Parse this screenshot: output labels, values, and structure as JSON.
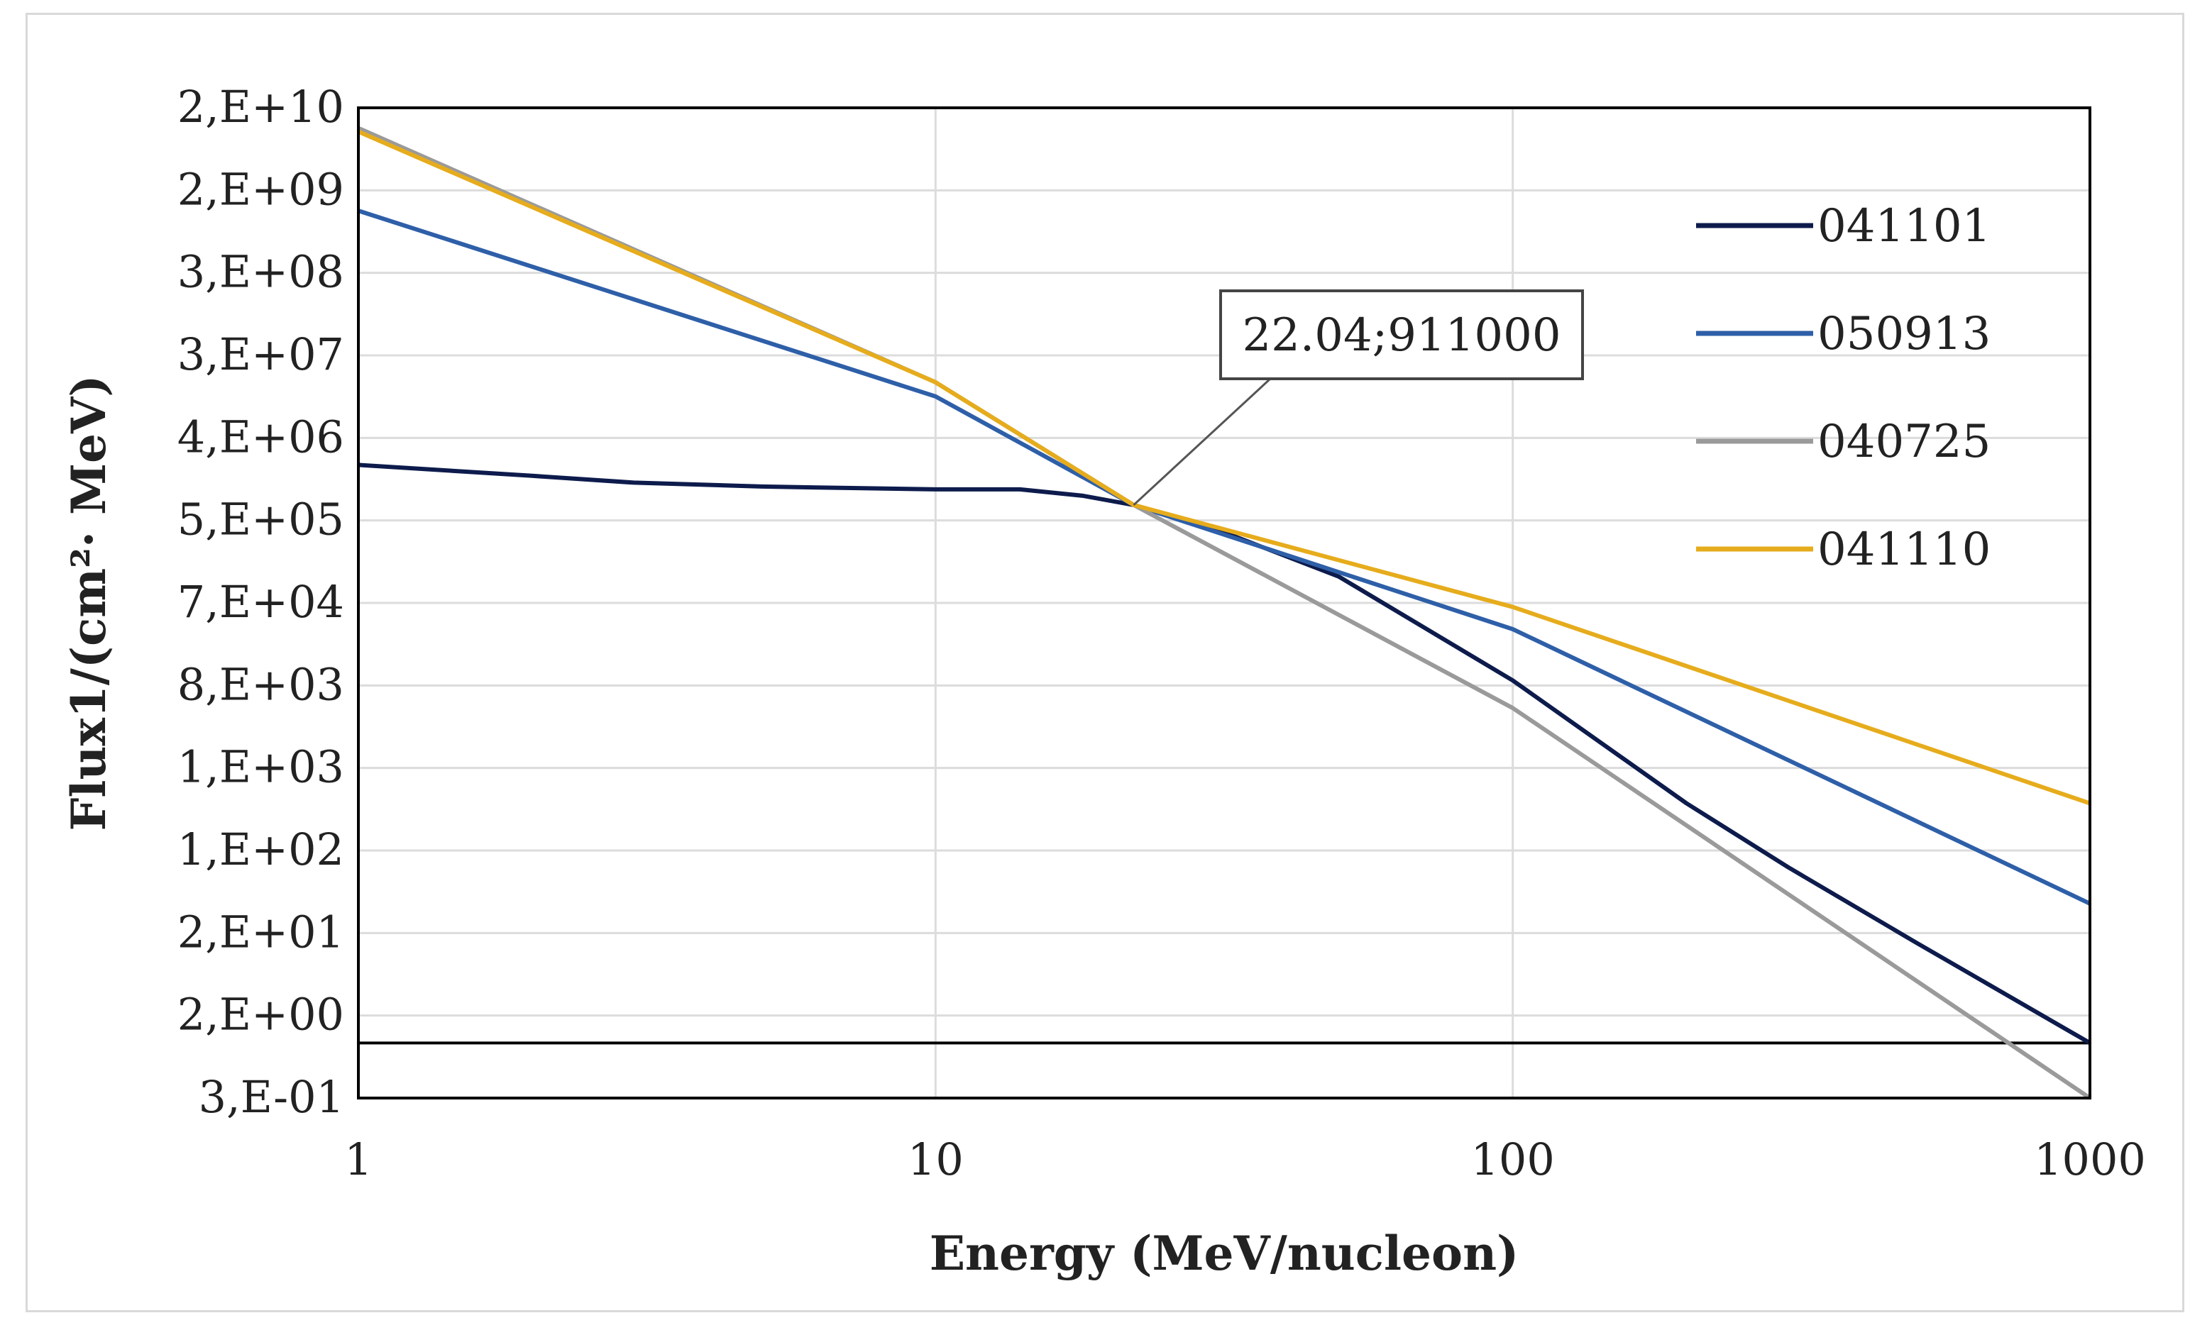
{
  "chart_data": {
    "type": "line",
    "title": "",
    "xlabel": "Energy (MeV/nucleon)",
    "ylabel": "Flux1/(cm²· MeV)",
    "xscale": "log",
    "yscale": "log",
    "xlim": [
      1,
      1000
    ],
    "ylim": [
      0.3,
      20000000000
    ],
    "grid": true,
    "legend_position": "right",
    "x_ticks": [
      "1",
      "10",
      "100",
      "1000"
    ],
    "y_ticks": [
      "2,E+10",
      "2,E+09",
      "3,E+08",
      "3,E+07",
      "4,E+06",
      "5,E+05",
      "7,E+04",
      "8,E+03",
      "1,E+03",
      "1,E+02",
      "2,E+01",
      "2,E+00",
      "3,E-01"
    ],
    "reference_line": {
      "y": 1.2
    },
    "annotation": {
      "text": "22.04;911000",
      "x": 22.04,
      "y": 911000
    },
    "series": [
      {
        "name": "041101",
        "color": "#0d1b4c",
        "x": [
          1,
          2,
          3,
          5,
          7,
          10,
          14,
          18,
          22.04,
          30,
          50,
          100,
          200,
          300,
          500,
          1000
        ],
        "y": [
          2500000,
          1900000,
          1600000,
          1450000,
          1400000,
          1350000,
          1350000,
          1150000,
          911000,
          520000,
          150000,
          11000,
          500,
          100,
          15,
          1.2
        ]
      },
      {
        "name": "050913",
        "color": "#2e5fa8",
        "x": [
          1,
          10,
          22.04,
          100,
          1000
        ],
        "y": [
          1500000000,
          14000000,
          911000,
          40000,
          40
        ]
      },
      {
        "name": "040725",
        "color": "#9a9a9a",
        "x": [
          1,
          10,
          22.04,
          100,
          1000
        ],
        "y": [
          12000000000,
          20000000,
          911000,
          5500,
          0.3
        ]
      },
      {
        "name": "041110",
        "color": "#e6ac1c",
        "x": [
          1,
          10,
          22.04,
          100,
          1000
        ],
        "y": [
          11000000000,
          20000000,
          911000,
          70000,
          500
        ]
      }
    ]
  }
}
